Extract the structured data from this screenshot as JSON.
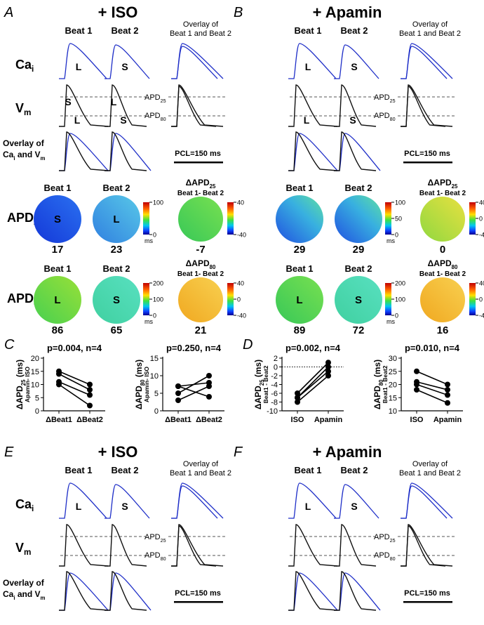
{
  "row_labels": {
    "ca": [
      "Ca",
      "i"
    ],
    "vm": [
      "V",
      "m"
    ],
    "overlay": [
      "Overlay of",
      "Ca",
      "i",
      " and V",
      "m"
    ],
    "apd25": [
      "APD",
      "25"
    ],
    "apd80": [
      "APD",
      "80"
    ]
  },
  "trace_panels": [
    {
      "letter": "A",
      "title": "+ ISO",
      "beat1": "Beat 1",
      "beat2": "Beat 2",
      "overlay": [
        "Overlay of",
        "Beat 1 and Beat  2"
      ],
      "ca_marks": [
        "L",
        "S"
      ],
      "vm_marks": [
        "S",
        "L",
        "L",
        "S"
      ],
      "apd25": [
        "APD",
        "25"
      ],
      "apd80": [
        "APD",
        "80"
      ],
      "pcl": "PCL=150 ms"
    },
    {
      "letter": "B",
      "title": "+ Apamin",
      "beat1": "Beat 1",
      "beat2": "Beat 2",
      "overlay": [
        "Overlay of",
        "Beat 1 and Beat  2"
      ],
      "ca_marks": [
        "L",
        "S"
      ],
      "vm_marks": [
        "L",
        "S"
      ],
      "apd25": [
        "APD",
        "25"
      ],
      "apd80": [
        "APD",
        "80"
      ],
      "pcl": "PCL=150 ms"
    },
    {
      "letter": "E",
      "title": "+ ISO",
      "beat1": "Beat 1",
      "beat2": "Beat 2",
      "overlay": [
        "Overlay of",
        "Beat 1 and Beat  2"
      ],
      "ca_marks": [
        "L",
        "S"
      ],
      "apd25": [
        "APD",
        "25"
      ],
      "apd80": [
        "APD",
        "80"
      ],
      "pcl": "PCL=150 ms"
    },
    {
      "letter": "F",
      "title": "+ Apamin",
      "beat1": "Beat 1",
      "beat2": "Beat 2",
      "overlay": [
        "Overlay of",
        "Beat 1 and Beat  2"
      ],
      "ca_marks": [
        "L",
        "S"
      ],
      "apd25": [
        "APD",
        "25"
      ],
      "apd80": [
        "APD",
        "80"
      ],
      "pcl": "PCL=150 ms"
    }
  ],
  "map_panels": [
    {
      "rows": [
        {
          "beat1": "Beat 1",
          "beat2": "Beat 2",
          "diff_title": [
            "ΔAPD",
            "25",
            "Beat 1- Beat 2"
          ],
          "scale": [
            "100",
            "0"
          ],
          "unit": "ms",
          "diff_scale": [
            "40",
            "-40"
          ],
          "marks": [
            "S",
            "L"
          ],
          "values": [
            17,
            23,
            -7
          ]
        },
        {
          "beat1": "Beat 1",
          "beat2": "Beat 2",
          "diff_title": [
            "ΔAPD",
            "80",
            "Beat 1- Beat 2"
          ],
          "scale": [
            "200",
            "100",
            "0"
          ],
          "unit": "ms",
          "diff_scale": [
            "40",
            "0",
            "-40"
          ],
          "marks": [
            "L",
            "S"
          ],
          "values": [
            86,
            65,
            21
          ]
        }
      ]
    },
    {
      "rows": [
        {
          "beat1": "Beat 1",
          "beat2": "Beat 2",
          "diff_title": [
            "ΔAPD",
            "25",
            "Beat 1- Beat 2"
          ],
          "scale": [
            "100",
            "50",
            "0"
          ],
          "unit": "ms",
          "diff_scale": [
            "40",
            "0",
            "-40"
          ],
          "values": [
            29,
            29,
            0
          ]
        },
        {
          "beat1": "Beat 1",
          "beat2": "Beat 2",
          "diff_title": [
            "ΔAPD",
            "80",
            "Beat 1- Beat 2"
          ],
          "scale": [
            "200",
            "100",
            "0"
          ],
          "unit": "ms",
          "diff_scale": [
            "40",
            "0",
            "-40"
          ],
          "marks": [
            "L",
            "S"
          ],
          "values": [
            89,
            72,
            16
          ]
        }
      ]
    }
  ],
  "chart_data": [
    {
      "type": "line",
      "letter": "C",
      "title": "p=0.004, n=4",
      "ylabel": [
        "ΔAPD",
        "25",
        " (ms)"
      ],
      "ylabel2": "Apamin- ISO",
      "categories": [
        "ΔBeat1",
        "ΔBeat2"
      ],
      "ylim": [
        0,
        20
      ],
      "yticks": [
        0,
        5,
        10,
        15,
        20
      ],
      "series": [
        {
          "color": "#000000",
          "values": [
            15,
            10
          ]
        },
        {
          "color": "#000000",
          "values": [
            14,
            8
          ]
        },
        {
          "color": "#000000",
          "values": [
            11,
            6
          ]
        },
        {
          "color": "#000000",
          "values": [
            10,
            2
          ]
        }
      ]
    },
    {
      "type": "line",
      "title": "p=0.250, n=4",
      "ylabel": [
        "ΔAPD",
        "80",
        " (ms)"
      ],
      "ylabel2": "Apamin- ISO",
      "categories": [
        "ΔBeat1",
        "ΔBeat2"
      ],
      "ylim": [
        0,
        15
      ],
      "yticks": [
        0,
        5,
        10,
        15
      ],
      "series": [
        {
          "color": "#000000",
          "values": [
            7,
            4
          ]
        },
        {
          "color": "#000000",
          "values": [
            7,
            8
          ]
        },
        {
          "color": "#000000",
          "values": [
            5,
            10
          ]
        },
        {
          "color": "#000000",
          "values": [
            3,
            7
          ]
        }
      ]
    },
    {
      "type": "line",
      "letter": "D",
      "title": "p=0.002, n=4",
      "ylabel": [
        "ΔAPD",
        "25",
        " (ms)"
      ],
      "ylabel2": "Beat1 - Beat2",
      "categories": [
        "ISO",
        "Apamin"
      ],
      "ylim": [
        -10,
        2
      ],
      "yticks": [
        -10,
        -8,
        -6,
        -4,
        -2,
        0,
        2
      ],
      "reference_line": 0,
      "series": [
        {
          "color": "#000000",
          "values": [
            -6,
            1
          ]
        },
        {
          "color": "#000000",
          "values": [
            -7,
            0
          ]
        },
        {
          "color": "#000000",
          "values": [
            -7,
            -1
          ]
        },
        {
          "color": "#000000",
          "values": [
            -8,
            -2
          ]
        }
      ]
    },
    {
      "type": "line",
      "title": "p=0.010, n=4",
      "ylabel": [
        "ΔAPD",
        "80",
        " (ms)"
      ],
      "ylabel2": "Beat1 - Beat2",
      "categories": [
        "ISO",
        "Apamin"
      ],
      "ylim": [
        10,
        30
      ],
      "yticks": [
        10,
        15,
        20,
        25,
        30
      ],
      "series": [
        {
          "color": "#000000",
          "values": [
            25,
            20
          ]
        },
        {
          "color": "#000000",
          "values": [
            21,
            18
          ]
        },
        {
          "color": "#000000",
          "values": [
            20,
            16
          ]
        },
        {
          "color": "#000000",
          "values": [
            18,
            13
          ]
        }
      ]
    }
  ]
}
